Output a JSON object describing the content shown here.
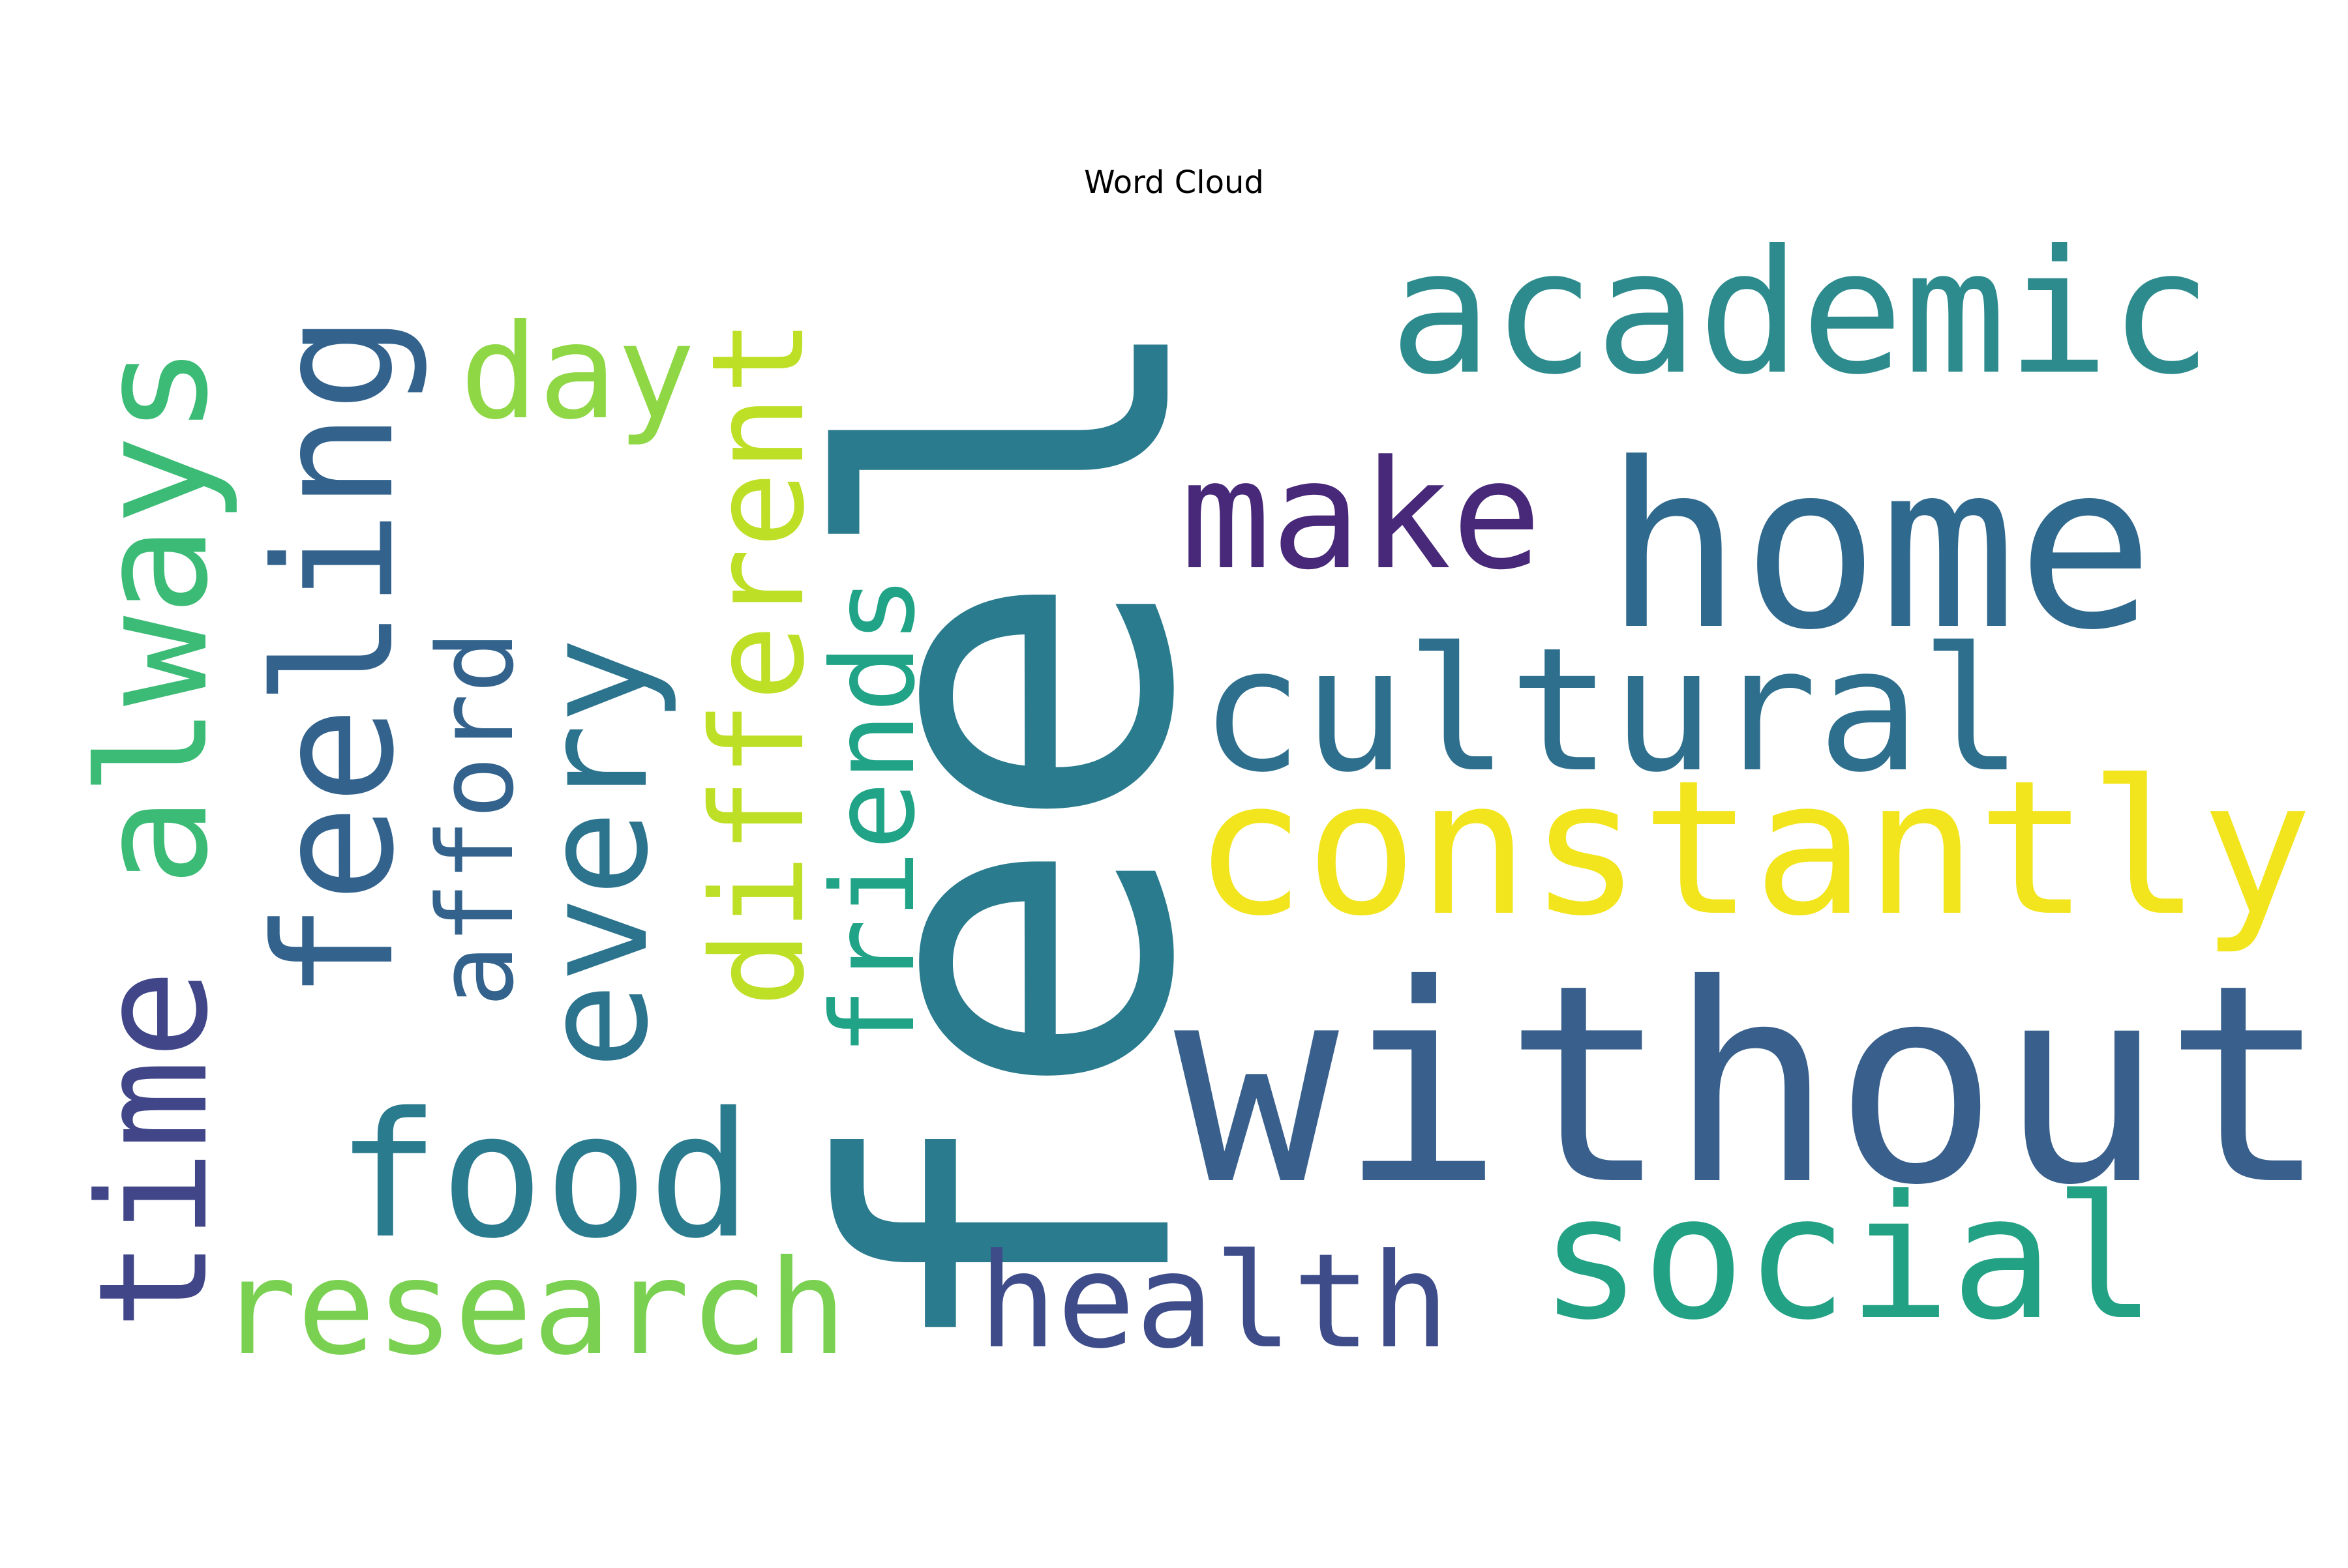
{
  "chart_data": {
    "type": "wordcloud",
    "title": "Word Cloud",
    "words": [
      {
        "text": "feel",
        "weight": 1.0,
        "color": "#2a7b8e"
      },
      {
        "text": "without",
        "weight": 0.62,
        "color": "#39608d"
      },
      {
        "text": "home",
        "weight": 0.56,
        "color": "#30698e"
      },
      {
        "text": "constantly",
        "weight": 0.4,
        "color": "#f2e51d"
      },
      {
        "text": "academic",
        "weight": 0.38,
        "color": "#2e8b8d"
      },
      {
        "text": "cultural",
        "weight": 0.38,
        "color": "#2f6f8e"
      },
      {
        "text": "social",
        "weight": 0.38,
        "color": "#22a185"
      },
      {
        "text": "food",
        "weight": 0.38,
        "color": "#2a7b8e"
      },
      {
        "text": "always",
        "weight": 0.36,
        "color": "#3bbb75"
      },
      {
        "text": "feeling",
        "weight": 0.36,
        "color": "#33638d"
      },
      {
        "text": "make",
        "weight": 0.33,
        "color": "#482878"
      },
      {
        "text": "time",
        "weight": 0.33,
        "color": "#404688"
      },
      {
        "text": "every",
        "weight": 0.31,
        "color": "#2c738e"
      },
      {
        "text": "research",
        "weight": 0.29,
        "color": "#7ad151"
      },
      {
        "text": "health",
        "weight": 0.29,
        "color": "#3e4c8a"
      },
      {
        "text": "different",
        "weight": 0.28,
        "color": "#bddf26"
      },
      {
        "text": "friends",
        "weight": 0.25,
        "color": "#20a386"
      },
      {
        "text": "day",
        "weight": 0.25,
        "color": "#8fd744"
      },
      {
        "text": "afford",
        "weight": 0.23,
        "color": "#33638d"
      }
    ]
  }
}
